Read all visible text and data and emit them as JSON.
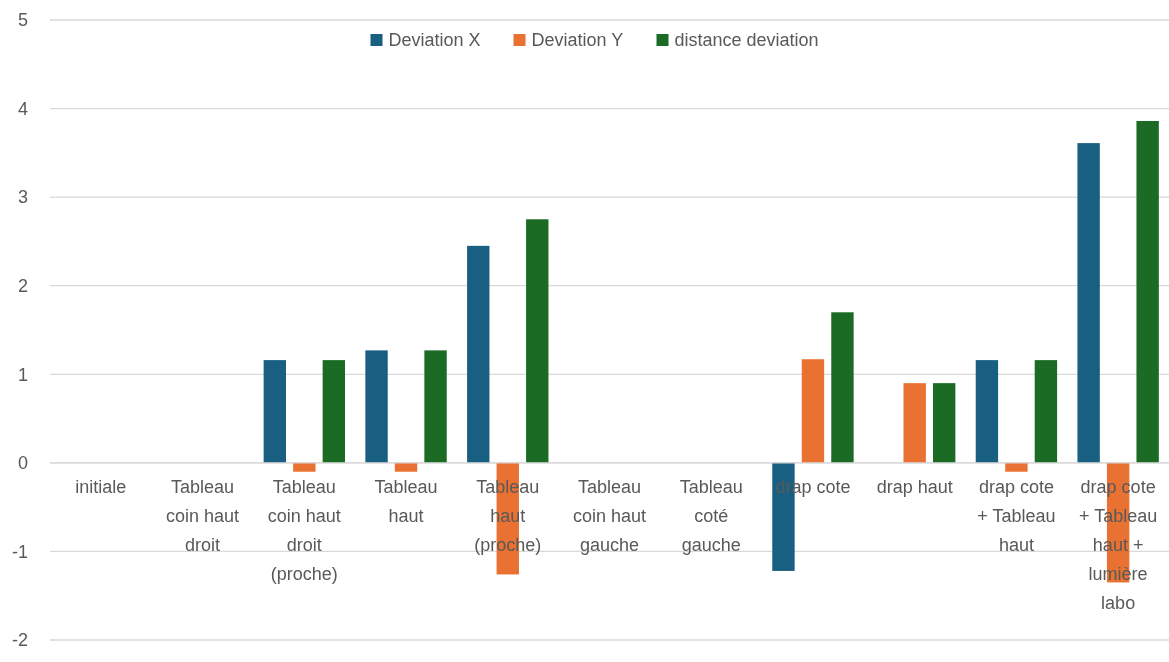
{
  "chart_data": {
    "type": "bar",
    "categories": [
      "initiale",
      "Tableau coin haut droit",
      "Tableau coin haut droit (proche)",
      "Tableau haut",
      "Tableau haut (proche)",
      "Tableau coin haut gauche",
      "Tableau coté gauche",
      "drap cote",
      "drap haut",
      "drap cote + Tableau haut",
      "drap cote + Tableau haut + lumière labo"
    ],
    "series": [
      {
        "name": "Deviation X",
        "color": "#185f81",
        "values": [
          0,
          0,
          1.16,
          1.27,
          2.45,
          0,
          0,
          -1.22,
          0,
          1.16,
          3.61
        ]
      },
      {
        "name": "Deviation Y",
        "color": "#e97132",
        "values": [
          0,
          0,
          -0.1,
          -0.1,
          -1.26,
          0,
          0,
          1.17,
          0.9,
          -0.1,
          -1.35
        ]
      },
      {
        "name": "distance deviation",
        "color": "#1b6b24",
        "values": [
          0,
          0,
          1.16,
          1.27,
          2.75,
          0,
          0,
          1.7,
          0.9,
          1.16,
          3.86
        ]
      }
    ],
    "ylim": [
      -2,
      5
    ],
    "yticks": [
      -2,
      -1,
      0,
      1,
      2,
      3,
      4,
      5
    ],
    "grid": "y",
    "legend": "top"
  }
}
